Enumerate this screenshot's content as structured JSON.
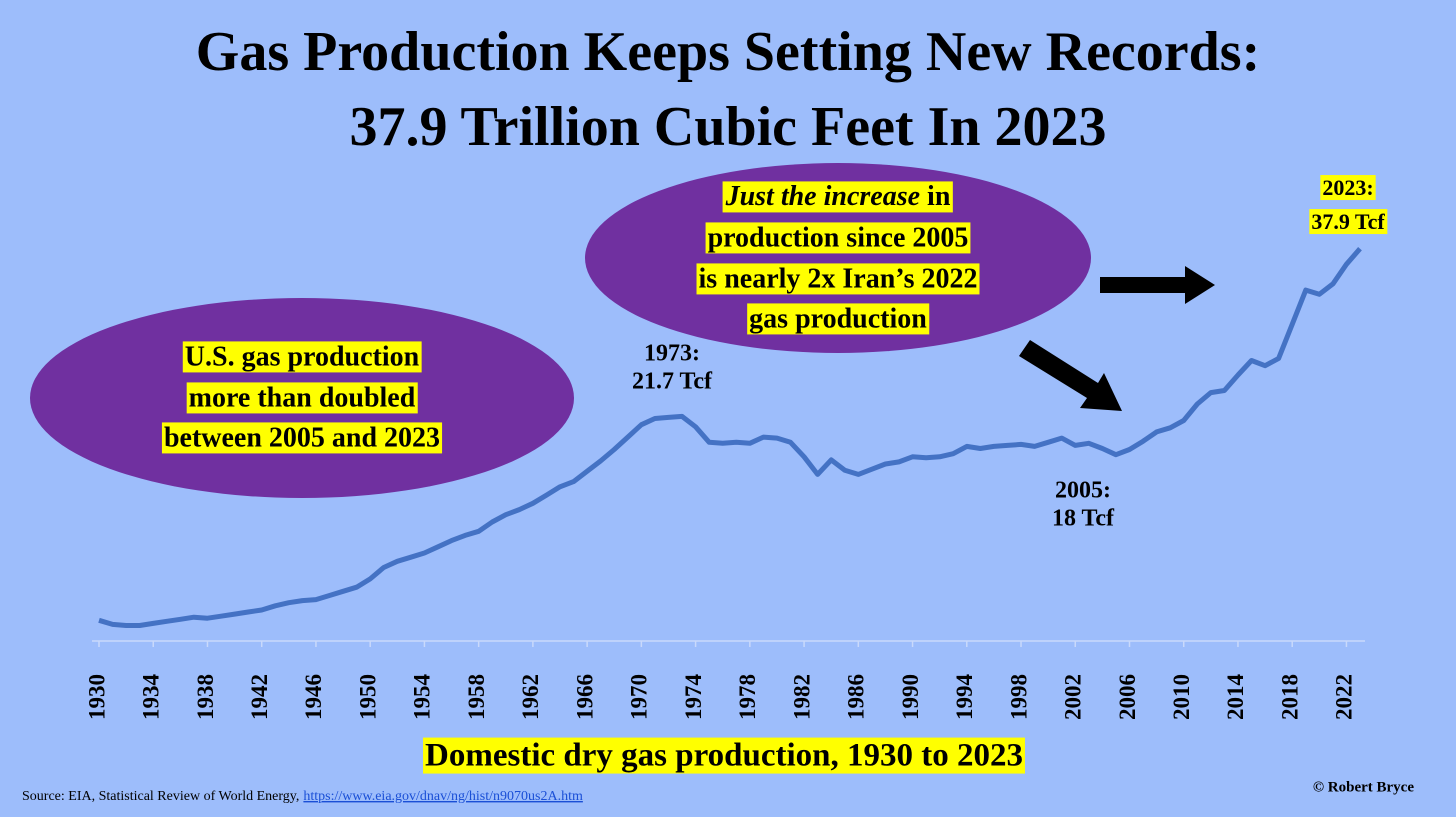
{
  "chart_data": {
    "type": "line",
    "title": [
      "Gas Production Keeps Setting New Records:",
      "37.9 Trillion Cubic Feet In 2023"
    ],
    "x_label": "Domestic dry gas production, 1930 to 2023",
    "x": [
      1930,
      1931,
      1932,
      1933,
      1934,
      1935,
      1936,
      1937,
      1938,
      1939,
      1940,
      1941,
      1942,
      1943,
      1944,
      1945,
      1946,
      1947,
      1948,
      1949,
      1950,
      1951,
      1952,
      1953,
      1954,
      1955,
      1956,
      1957,
      1958,
      1959,
      1960,
      1961,
      1962,
      1963,
      1964,
      1965,
      1966,
      1967,
      1968,
      1969,
      1970,
      1971,
      1972,
      1973,
      1974,
      1975,
      1976,
      1977,
      1978,
      1979,
      1980,
      1981,
      1982,
      1983,
      1984,
      1985,
      1986,
      1987,
      1988,
      1989,
      1990,
      1991,
      1992,
      1993,
      1994,
      1995,
      1996,
      1997,
      1998,
      1999,
      2000,
      2001,
      2002,
      2003,
      2004,
      2005,
      2006,
      2007,
      2008,
      2009,
      2010,
      2011,
      2012,
      2013,
      2014,
      2015,
      2016,
      2017,
      2018,
      2019,
      2020,
      2021,
      2022,
      2023
    ],
    "values": [
      2.0,
      1.6,
      1.5,
      1.5,
      1.7,
      1.9,
      2.1,
      2.3,
      2.2,
      2.4,
      2.6,
      2.8,
      3.0,
      3.4,
      3.7,
      3.9,
      4.0,
      4.4,
      4.8,
      5.2,
      6.0,
      7.1,
      7.7,
      8.1,
      8.5,
      9.1,
      9.7,
      10.2,
      10.6,
      11.5,
      12.2,
      12.7,
      13.3,
      14.1,
      14.9,
      15.4,
      16.4,
      17.4,
      18.5,
      19.7,
      20.9,
      21.5,
      21.6,
      21.7,
      20.7,
      19.2,
      19.1,
      19.2,
      19.1,
      19.7,
      19.6,
      19.2,
      17.8,
      16.1,
      17.5,
      16.5,
      16.1,
      16.6,
      17.1,
      17.3,
      17.8,
      17.7,
      17.8,
      18.1,
      18.8,
      18.6,
      18.8,
      18.9,
      19.0,
      18.8,
      19.2,
      19.6,
      18.9,
      19.1,
      18.6,
      18.0,
      18.5,
      19.3,
      20.2,
      20.6,
      21.3,
      22.9,
      24.0,
      24.2,
      25.7,
      27.1,
      26.6,
      27.3,
      30.6,
      33.9,
      33.5,
      34.5,
      36.4,
      37.9
    ],
    "color": "#4472c4",
    "xlim": [
      1930,
      2023
    ],
    "xticks": [
      1930,
      1934,
      1938,
      1942,
      1946,
      1950,
      1954,
      1958,
      1962,
      1966,
      1970,
      1974,
      1978,
      1982,
      1986,
      1990,
      1994,
      1998,
      2002,
      2006,
      2010,
      2014,
      2018,
      2022
    ],
    "ylim": [
      0,
      40
    ],
    "annotations": [
      {
        "lines": [
          "U.S. gas production",
          "more than doubled",
          "between 2005 and 2023"
        ]
      },
      {
        "lines": [
          "Just the increase",
          "in",
          "production since 2005",
          "is nearly 2x Iran’s 2022",
          "gas production"
        ]
      },
      {
        "lines": [
          "1973:",
          "21.7 Tcf"
        ]
      },
      {
        "lines": [
          "2005:",
          "18 Tcf"
        ]
      },
      {
        "lines": [
          "2023:",
          "37.9 Tcf"
        ]
      }
    ],
    "source": "Source: EIA, Statistical Review of World Energy,",
    "source_link": "https://www.eia.gov/dnav/ng/hist/n9070us2A.htm",
    "credit": "© Robert Bryce"
  }
}
